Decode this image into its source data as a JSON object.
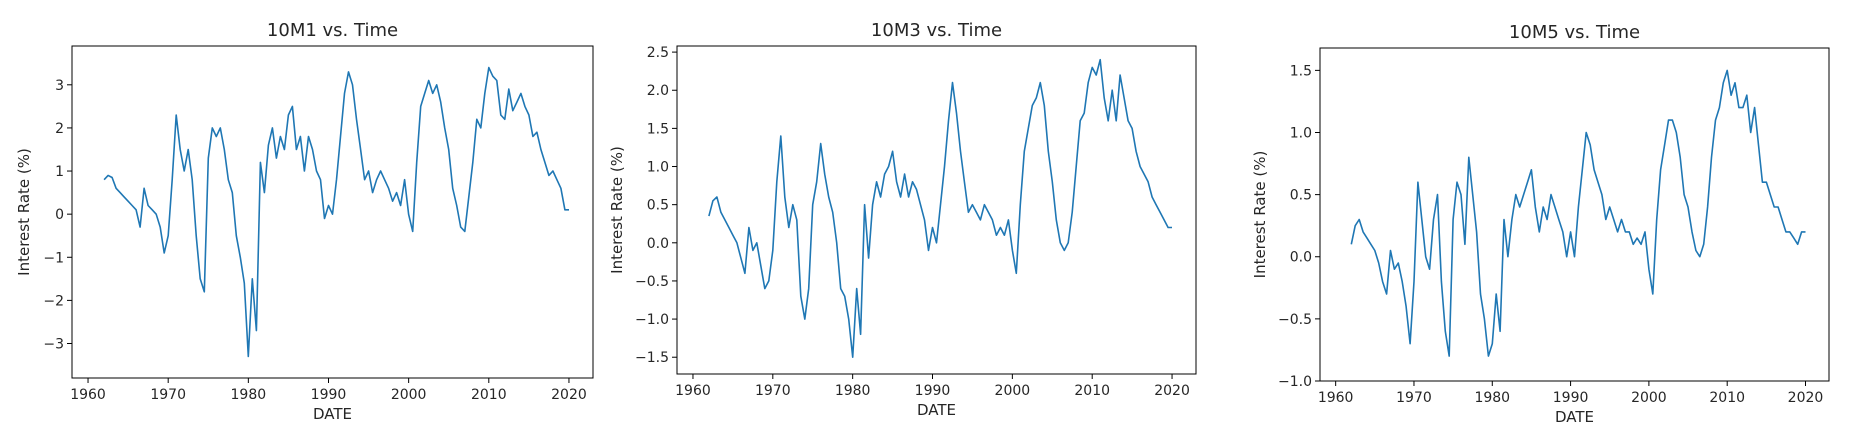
{
  "chart_data": [
    {
      "type": "line",
      "title": "10M1 vs. Time",
      "xlabel": "DATE",
      "ylabel": "Interest Rate (%)",
      "xlim": [
        1958.0,
        2023.0
      ],
      "ylim": [
        -3.8,
        3.9
      ],
      "xticks": [
        1960,
        1970,
        1980,
        1990,
        2000,
        2010,
        2020
      ],
      "xtick_labels": [
        "1960",
        "1970",
        "1980",
        "1990",
        "2000",
        "2010",
        "2020"
      ],
      "yticks": [
        -3,
        -2,
        -1,
        0,
        1,
        2,
        3
      ],
      "ytick_labels": [
        "−3",
        "−2",
        "−1",
        "0",
        "1",
        "2",
        "3"
      ],
      "grid": false,
      "color": "#1f77b4",
      "series": [
        {
          "x": [
            1962.0,
            1962.5,
            1963.0,
            1963.5,
            1964.0,
            1964.5,
            1965.0,
            1965.5,
            1966.0,
            1966.5,
            1967.0,
            1967.5,
            1968.0,
            1968.5,
            1969.0,
            1969.5,
            1970.0,
            1970.5,
            1971.0,
            1971.5,
            1972.0,
            1972.5,
            1973.0,
            1973.5,
            1974.0,
            1974.5,
            1975.0,
            1975.5,
            1976.0,
            1976.5,
            1977.0,
            1977.5,
            1978.0,
            1978.5,
            1979.0,
            1979.5,
            1980.0,
            1980.5,
            1981.0,
            1981.5,
            1982.0,
            1982.5,
            1983.0,
            1983.5,
            1984.0,
            1984.5,
            1985.0,
            1985.5,
            1986.0,
            1986.5,
            1987.0,
            1987.5,
            1988.0,
            1988.5,
            1989.0,
            1989.5,
            1990.0,
            1990.5,
            1991.0,
            1991.5,
            1992.0,
            1992.5,
            1993.0,
            1993.5,
            1994.0,
            1994.5,
            1995.0,
            1995.5,
            1996.0,
            1996.5,
            1997.0,
            1997.5,
            1998.0,
            1998.5,
            1999.0,
            1999.5,
            2000.0,
            2000.5,
            2001.0,
            2001.5,
            2002.0,
            2002.5,
            2003.0,
            2003.5,
            2004.0,
            2004.5,
            2005.0,
            2005.5,
            2006.0,
            2006.5,
            2007.0,
            2007.5,
            2008.0,
            2008.5,
            2009.0,
            2009.5,
            2010.0,
            2010.5,
            2011.0,
            2011.5,
            2012.0,
            2012.5,
            2013.0,
            2013.5,
            2014.0,
            2014.5,
            2015.0,
            2015.5,
            2016.0,
            2016.5,
            2017.0,
            2017.5,
            2018.0,
            2018.5,
            2019.0,
            2019.5,
            2020.0
          ],
          "y": [
            0.8,
            0.9,
            0.85,
            0.6,
            0.5,
            0.4,
            0.3,
            0.2,
            0.1,
            -0.3,
            0.6,
            0.2,
            0.1,
            0.0,
            -0.3,
            -0.9,
            -0.5,
            0.8,
            2.3,
            1.5,
            1.0,
            1.5,
            0.8,
            -0.5,
            -1.5,
            -1.8,
            1.3,
            2.0,
            1.8,
            2.0,
            1.5,
            0.8,
            0.5,
            -0.5,
            -1.0,
            -1.6,
            -3.3,
            -1.5,
            -2.7,
            1.2,
            0.5,
            1.6,
            2.0,
            1.3,
            1.8,
            1.5,
            2.3,
            2.5,
            1.5,
            1.8,
            1.0,
            1.8,
            1.5,
            1.0,
            0.8,
            -0.1,
            0.2,
            0.0,
            0.8,
            1.8,
            2.8,
            3.3,
            3.0,
            2.2,
            1.5,
            0.8,
            1.0,
            0.5,
            0.8,
            1.0,
            0.8,
            0.6,
            0.3,
            0.5,
            0.2,
            0.8,
            0.0,
            -0.4,
            1.2,
            2.5,
            2.8,
            3.1,
            2.8,
            3.0,
            2.6,
            2.0,
            1.5,
            0.6,
            0.2,
            -0.3,
            -0.4,
            0.4,
            1.2,
            2.2,
            2.0,
            2.8,
            3.4,
            3.2,
            3.1,
            2.3,
            2.2,
            2.9,
            2.4,
            2.6,
            2.8,
            2.5,
            2.3,
            1.8,
            1.9,
            1.5,
            1.2,
            0.9,
            1.0,
            0.8,
            0.6,
            0.1,
            0.1
          ]
        }
      ]
    },
    {
      "type": "line",
      "title": "10M3 vs. Time",
      "xlabel": "DATE",
      "ylabel": "Interest Rate (%)",
      "xlim": [
        1958.0,
        2023.0
      ],
      "ylim": [
        -1.72,
        2.58
      ],
      "xticks": [
        1960,
        1970,
        1980,
        1990,
        2000,
        2010,
        2020
      ],
      "xtick_labels": [
        "1960",
        "1970",
        "1980",
        "1990",
        "2000",
        "2010",
        "2020"
      ],
      "yticks": [
        -1.5,
        -1.0,
        -0.5,
        0.0,
        0.5,
        1.0,
        1.5,
        2.0,
        2.5
      ],
      "ytick_labels": [
        "−1.5",
        "−1.0",
        "−0.5",
        "0.0",
        "0.5",
        "1.0",
        "1.5",
        "2.0",
        "2.5"
      ],
      "grid": false,
      "color": "#1f77b4",
      "series": [
        {
          "x": [
            1962.0,
            1962.5,
            1963.0,
            1963.5,
            1964.0,
            1964.5,
            1965.0,
            1965.5,
            1966.0,
            1966.5,
            1967.0,
            1967.5,
            1968.0,
            1968.5,
            1969.0,
            1969.5,
            1970.0,
            1970.5,
            1971.0,
            1971.5,
            1972.0,
            1972.5,
            1973.0,
            1973.5,
            1974.0,
            1974.5,
            1975.0,
            1975.5,
            1976.0,
            1976.5,
            1977.0,
            1977.5,
            1978.0,
            1978.5,
            1979.0,
            1979.5,
            1980.0,
            1980.5,
            1981.0,
            1981.5,
            1982.0,
            1982.5,
            1983.0,
            1983.5,
            1984.0,
            1984.5,
            1985.0,
            1985.5,
            1986.0,
            1986.5,
            1987.0,
            1987.5,
            1988.0,
            1988.5,
            1989.0,
            1989.5,
            1990.0,
            1990.5,
            1991.0,
            1991.5,
            1992.0,
            1992.5,
            1993.0,
            1993.5,
            1994.0,
            1994.5,
            1995.0,
            1995.5,
            1996.0,
            1996.5,
            1997.0,
            1997.5,
            1998.0,
            1998.5,
            1999.0,
            1999.5,
            2000.0,
            2000.5,
            2001.0,
            2001.5,
            2002.0,
            2002.5,
            2003.0,
            2003.5,
            2004.0,
            2004.5,
            2005.0,
            2005.5,
            2006.0,
            2006.5,
            2007.0,
            2007.5,
            2008.0,
            2008.5,
            2009.0,
            2009.5,
            2010.0,
            2010.5,
            2011.0,
            2011.5,
            2012.0,
            2012.5,
            2013.0,
            2013.5,
            2014.0,
            2014.5,
            2015.0,
            2015.5,
            2016.0,
            2016.5,
            2017.0,
            2017.5,
            2018.0,
            2018.5,
            2019.0,
            2019.5,
            2020.0
          ],
          "y": [
            0.35,
            0.55,
            0.6,
            0.4,
            0.3,
            0.2,
            0.1,
            0.0,
            -0.2,
            -0.4,
            0.2,
            -0.1,
            0.0,
            -0.3,
            -0.6,
            -0.5,
            -0.1,
            0.8,
            1.4,
            0.6,
            0.2,
            0.5,
            0.3,
            -0.7,
            -1.0,
            -0.6,
            0.5,
            0.8,
            1.3,
            0.9,
            0.6,
            0.4,
            0.0,
            -0.6,
            -0.7,
            -1.0,
            -1.5,
            -0.6,
            -1.2,
            0.5,
            -0.2,
            0.5,
            0.8,
            0.6,
            0.9,
            1.0,
            1.2,
            0.8,
            0.6,
            0.9,
            0.6,
            0.8,
            0.7,
            0.5,
            0.3,
            -0.1,
            0.2,
            0.0,
            0.5,
            1.0,
            1.6,
            2.1,
            1.7,
            1.2,
            0.8,
            0.4,
            0.5,
            0.4,
            0.3,
            0.5,
            0.4,
            0.3,
            0.1,
            0.2,
            0.1,
            0.3,
            -0.1,
            -0.4,
            0.5,
            1.2,
            1.5,
            1.8,
            1.9,
            2.1,
            1.8,
            1.2,
            0.8,
            0.3,
            0.0,
            -0.1,
            0.0,
            0.4,
            1.0,
            1.6,
            1.7,
            2.1,
            2.3,
            2.2,
            2.4,
            1.9,
            1.6,
            2.0,
            1.6,
            2.2,
            1.9,
            1.6,
            1.5,
            1.2,
            1.0,
            0.9,
            0.8,
            0.6,
            0.5,
            0.4,
            0.3,
            0.2,
            0.2
          ]
        }
      ]
    },
    {
      "type": "line",
      "title": "10M5 vs. Time",
      "xlabel": "DATE",
      "ylabel": "Interest Rate (%)",
      "xlim": [
        1958.0,
        2023.0
      ],
      "ylim": [
        -1.0,
        1.68
      ],
      "xticks": [
        1960,
        1970,
        1980,
        1990,
        2000,
        2010,
        2020
      ],
      "xtick_labels": [
        "1960",
        "1970",
        "1980",
        "1990",
        "2000",
        "2010",
        "2020"
      ],
      "yticks": [
        -1.0,
        -0.5,
        0.0,
        0.5,
        1.0,
        1.5
      ],
      "ytick_labels": [
        "−1.0",
        "−0.5",
        "0.0",
        "0.5",
        "1.0",
        "1.5"
      ],
      "grid": false,
      "color": "#1f77b4",
      "series": [
        {
          "x": [
            1962.0,
            1962.5,
            1963.0,
            1963.5,
            1964.0,
            1964.5,
            1965.0,
            1965.5,
            1966.0,
            1966.5,
            1967.0,
            1967.5,
            1968.0,
            1968.5,
            1969.0,
            1969.5,
            1970.0,
            1970.5,
            1971.0,
            1971.5,
            1972.0,
            1972.5,
            1973.0,
            1973.5,
            1974.0,
            1974.5,
            1975.0,
            1975.5,
            1976.0,
            1976.5,
            1977.0,
            1977.5,
            1978.0,
            1978.5,
            1979.0,
            1979.5,
            1980.0,
            1980.5,
            1981.0,
            1981.5,
            1982.0,
            1982.5,
            1983.0,
            1983.5,
            1984.0,
            1984.5,
            1985.0,
            1985.5,
            1986.0,
            1986.5,
            1987.0,
            1987.5,
            1988.0,
            1988.5,
            1989.0,
            1989.5,
            1990.0,
            1990.5,
            1991.0,
            1991.5,
            1992.0,
            1992.5,
            1993.0,
            1993.5,
            1994.0,
            1994.5,
            1995.0,
            1995.5,
            1996.0,
            1996.5,
            1997.0,
            1997.5,
            1998.0,
            1998.5,
            1999.0,
            1999.5,
            2000.0,
            2000.5,
            2001.0,
            2001.5,
            2002.0,
            2002.5,
            2003.0,
            2003.5,
            2004.0,
            2004.5,
            2005.0,
            2005.5,
            2006.0,
            2006.5,
            2007.0,
            2007.5,
            2008.0,
            2008.5,
            2009.0,
            2009.5,
            2010.0,
            2010.5,
            2011.0,
            2011.5,
            2012.0,
            2012.5,
            2013.0,
            2013.5,
            2014.0,
            2014.5,
            2015.0,
            2015.5,
            2016.0,
            2016.5,
            2017.0,
            2017.5,
            2018.0,
            2018.5,
            2019.0,
            2019.5,
            2020.0
          ],
          "y": [
            0.1,
            0.25,
            0.3,
            0.2,
            0.15,
            0.1,
            0.05,
            -0.05,
            -0.2,
            -0.3,
            0.05,
            -0.1,
            -0.05,
            -0.2,
            -0.4,
            -0.7,
            -0.2,
            0.6,
            0.3,
            0.0,
            -0.1,
            0.3,
            0.5,
            -0.2,
            -0.6,
            -0.8,
            0.3,
            0.6,
            0.5,
            0.1,
            0.8,
            0.5,
            0.2,
            -0.3,
            -0.5,
            -0.8,
            -0.7,
            -0.3,
            -0.6,
            0.3,
            0.0,
            0.3,
            0.5,
            0.4,
            0.5,
            0.6,
            0.7,
            0.4,
            0.2,
            0.4,
            0.3,
            0.5,
            0.4,
            0.3,
            0.2,
            0.0,
            0.2,
            0.0,
            0.4,
            0.7,
            1.0,
            0.9,
            0.7,
            0.6,
            0.5,
            0.3,
            0.4,
            0.3,
            0.2,
            0.3,
            0.2,
            0.2,
            0.1,
            0.15,
            0.1,
            0.2,
            -0.1,
            -0.3,
            0.3,
            0.7,
            0.9,
            1.1,
            1.1,
            1.0,
            0.8,
            0.5,
            0.4,
            0.2,
            0.05,
            0.0,
            0.1,
            0.4,
            0.8,
            1.1,
            1.2,
            1.4,
            1.5,
            1.3,
            1.4,
            1.2,
            1.2,
            1.3,
            1.0,
            1.2,
            0.9,
            0.6,
            0.6,
            0.5,
            0.4,
            0.4,
            0.3,
            0.2,
            0.2,
            0.15,
            0.1,
            0.2,
            0.2
          ]
        }
      ]
    }
  ]
}
